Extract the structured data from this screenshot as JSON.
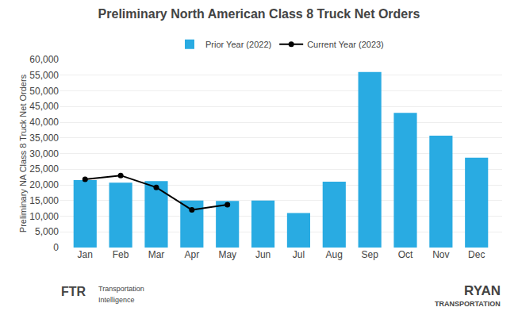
{
  "chart_data": {
    "type": "bar",
    "title": "Preliminary North American Class 8 Truck Net Orders",
    "ylabel": "Preliminary NA Class 8 Truck Net Orders",
    "categories": [
      "Jan",
      "Feb",
      "Mar",
      "Apr",
      "May",
      "Jun",
      "Jul",
      "Aug",
      "Sep",
      "Oct",
      "Nov",
      "Dec"
    ],
    "series": [
      {
        "name": "Prior Year (2022)",
        "type": "bar",
        "color": "#29ABE2",
        "values": [
          21500,
          20700,
          21200,
          15000,
          14900,
          15000,
          11000,
          21000,
          56000,
          43000,
          35700,
          28700
        ]
      },
      {
        "name": "Current Year (2023)",
        "type": "line",
        "color": "#000000",
        "marker": "circle",
        "values": [
          21800,
          23000,
          19200,
          12000,
          13700,
          null,
          null,
          null,
          null,
          null,
          null,
          null
        ]
      }
    ],
    "ylim": [
      0,
      60000
    ],
    "yticks": [
      0,
      {
        "value": 5000,
        "label": "5,000"
      },
      {
        "value": 10000,
        "label": "10,000"
      },
      {
        "value": 15000,
        "label": "15,000"
      },
      {
        "value": 20000,
        "label": "20,000"
      },
      {
        "value": 25000,
        "label": "25,000"
      },
      {
        "value": 30000,
        "label": "30,000"
      },
      {
        "value": 35000,
        "label": "35,000"
      },
      {
        "value": 40000,
        "label": "40,000"
      },
      {
        "value": 45000,
        "label": "45,000"
      },
      {
        "value": 50000,
        "label": "50,000"
      },
      {
        "value": 55000,
        "label": "55,000"
      },
      {
        "value": 60000,
        "label": "60,000"
      }
    ],
    "grid": true,
    "legend": "top",
    "annotations": [
      "FTR",
      "Transportation",
      "Intelligence",
      "RYAN",
      "TRANSPORTATION"
    ]
  }
}
